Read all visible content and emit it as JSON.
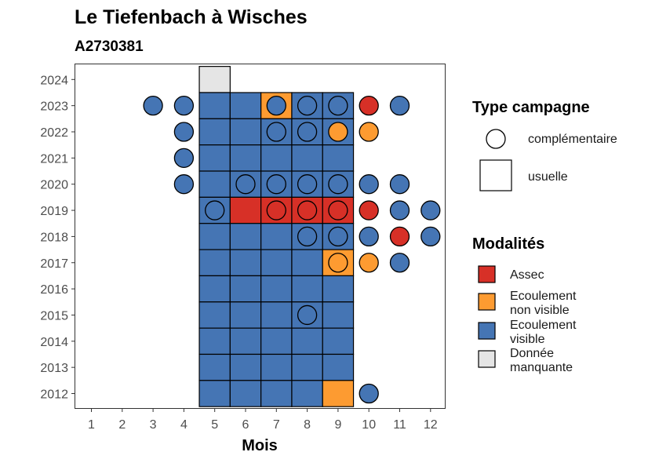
{
  "chart_data": {
    "type": "heatmap",
    "title": "Le Tiefenbach à Wisches",
    "subtitle": "A2730381",
    "xlabel": "Mois",
    "ylabel": "",
    "x_ticks": [
      1,
      2,
      3,
      4,
      5,
      6,
      7,
      8,
      9,
      10,
      11,
      12
    ],
    "y_ticks": [
      2012,
      2013,
      2014,
      2015,
      2016,
      2017,
      2018,
      2019,
      2020,
      2021,
      2022,
      2023,
      2024
    ],
    "xlim": [
      1,
      12
    ],
    "ylim": [
      2012,
      2024
    ],
    "grid": false,
    "legend_position": "right",
    "colors": {
      "Assec": "#d73027",
      "Ecoulement non visible": "#fd9b31",
      "Ecoulement visible": "#4575b4",
      "Donnée manquante": "#e5e5e5"
    },
    "legend": {
      "type_title": "Type campagne",
      "type_entries": [
        {
          "key": "complementaire",
          "label": "complémentaire",
          "shape": "circle"
        },
        {
          "key": "usuelle",
          "label": "usuelle",
          "shape": "square"
        }
      ],
      "modalite_title": "Modalités",
      "modalite_entries": [
        {
          "key": "Assec",
          "lines": [
            "Assec"
          ]
        },
        {
          "key": "Ecoulement non visible",
          "lines": [
            "Ecoulement",
            "non visible"
          ]
        },
        {
          "key": "Ecoulement visible",
          "lines": [
            "Ecoulement",
            "visible"
          ]
        },
        {
          "key": "Donnée manquante",
          "lines": [
            "Donnée",
            "manquante"
          ]
        }
      ]
    },
    "usuelle": [
      {
        "year": 2024,
        "month": 5,
        "modalite": "Donnée manquante"
      },
      {
        "year": 2023,
        "month": 5,
        "modalite": "Ecoulement visible"
      },
      {
        "year": 2023,
        "month": 6,
        "modalite": "Ecoulement visible"
      },
      {
        "year": 2023,
        "month": 7,
        "modalite": "Ecoulement non visible"
      },
      {
        "year": 2023,
        "month": 8,
        "modalite": "Ecoulement visible"
      },
      {
        "year": 2023,
        "month": 9,
        "modalite": "Ecoulement visible"
      },
      {
        "year": 2022,
        "month": 5,
        "modalite": "Ecoulement visible"
      },
      {
        "year": 2022,
        "month": 6,
        "modalite": "Ecoulement visible"
      },
      {
        "year": 2022,
        "month": 7,
        "modalite": "Ecoulement visible"
      },
      {
        "year": 2022,
        "month": 8,
        "modalite": "Ecoulement visible"
      },
      {
        "year": 2022,
        "month": 9,
        "modalite": "Ecoulement visible"
      },
      {
        "year": 2021,
        "month": 5,
        "modalite": "Ecoulement visible"
      },
      {
        "year": 2021,
        "month": 6,
        "modalite": "Ecoulement visible"
      },
      {
        "year": 2021,
        "month": 7,
        "modalite": "Ecoulement visible"
      },
      {
        "year": 2021,
        "month": 8,
        "modalite": "Ecoulement visible"
      },
      {
        "year": 2021,
        "month": 9,
        "modalite": "Ecoulement visible"
      },
      {
        "year": 2020,
        "month": 5,
        "modalite": "Ecoulement visible"
      },
      {
        "year": 2020,
        "month": 6,
        "modalite": "Ecoulement visible"
      },
      {
        "year": 2020,
        "month": 7,
        "modalite": "Ecoulement visible"
      },
      {
        "year": 2020,
        "month": 8,
        "modalite": "Ecoulement visible"
      },
      {
        "year": 2020,
        "month": 9,
        "modalite": "Ecoulement visible"
      },
      {
        "year": 2019,
        "month": 5,
        "modalite": "Ecoulement visible"
      },
      {
        "year": 2019,
        "month": 6,
        "modalite": "Assec"
      },
      {
        "year": 2019,
        "month": 7,
        "modalite": "Assec"
      },
      {
        "year": 2019,
        "month": 8,
        "modalite": "Assec"
      },
      {
        "year": 2019,
        "month": 9,
        "modalite": "Assec"
      },
      {
        "year": 2018,
        "month": 5,
        "modalite": "Ecoulement visible"
      },
      {
        "year": 2018,
        "month": 6,
        "modalite": "Ecoulement visible"
      },
      {
        "year": 2018,
        "month": 7,
        "modalite": "Ecoulement visible"
      },
      {
        "year": 2018,
        "month": 8,
        "modalite": "Ecoulement visible"
      },
      {
        "year": 2018,
        "month": 9,
        "modalite": "Ecoulement visible"
      },
      {
        "year": 2017,
        "month": 5,
        "modalite": "Ecoulement visible"
      },
      {
        "year": 2017,
        "month": 6,
        "modalite": "Ecoulement visible"
      },
      {
        "year": 2017,
        "month": 7,
        "modalite": "Ecoulement visible"
      },
      {
        "year": 2017,
        "month": 8,
        "modalite": "Ecoulement visible"
      },
      {
        "year": 2017,
        "month": 9,
        "modalite": "Ecoulement non visible"
      },
      {
        "year": 2016,
        "month": 5,
        "modalite": "Ecoulement visible"
      },
      {
        "year": 2016,
        "month": 6,
        "modalite": "Ecoulement visible"
      },
      {
        "year": 2016,
        "month": 7,
        "modalite": "Ecoulement visible"
      },
      {
        "year": 2016,
        "month": 8,
        "modalite": "Ecoulement visible"
      },
      {
        "year": 2016,
        "month": 9,
        "modalite": "Ecoulement visible"
      },
      {
        "year": 2015,
        "month": 5,
        "modalite": "Ecoulement visible"
      },
      {
        "year": 2015,
        "month": 6,
        "modalite": "Ecoulement visible"
      },
      {
        "year": 2015,
        "month": 7,
        "modalite": "Ecoulement visible"
      },
      {
        "year": 2015,
        "month": 8,
        "modalite": "Ecoulement visible"
      },
      {
        "year": 2015,
        "month": 9,
        "modalite": "Ecoulement visible"
      },
      {
        "year": 2014,
        "month": 5,
        "modalite": "Ecoulement visible"
      },
      {
        "year": 2014,
        "month": 6,
        "modalite": "Ecoulement visible"
      },
      {
        "year": 2014,
        "month": 7,
        "modalite": "Ecoulement visible"
      },
      {
        "year": 2014,
        "month": 8,
        "modalite": "Ecoulement visible"
      },
      {
        "year": 2014,
        "month": 9,
        "modalite": "Ecoulement visible"
      },
      {
        "year": 2013,
        "month": 5,
        "modalite": "Ecoulement visible"
      },
      {
        "year": 2013,
        "month": 6,
        "modalite": "Ecoulement visible"
      },
      {
        "year": 2013,
        "month": 7,
        "modalite": "Ecoulement visible"
      },
      {
        "year": 2013,
        "month": 8,
        "modalite": "Ecoulement visible"
      },
      {
        "year": 2013,
        "month": 9,
        "modalite": "Ecoulement visible"
      },
      {
        "year": 2012,
        "month": 5,
        "modalite": "Ecoulement visible"
      },
      {
        "year": 2012,
        "month": 6,
        "modalite": "Ecoulement visible"
      },
      {
        "year": 2012,
        "month": 7,
        "modalite": "Ecoulement visible"
      },
      {
        "year": 2012,
        "month": 8,
        "modalite": "Ecoulement visible"
      },
      {
        "year": 2012,
        "month": 9,
        "modalite": "Ecoulement non visible"
      }
    ],
    "complementaire": [
      {
        "year": 2023,
        "month": 3,
        "modalite": "Ecoulement visible"
      },
      {
        "year": 2023,
        "month": 4,
        "modalite": "Ecoulement visible"
      },
      {
        "year": 2023,
        "month": 7,
        "modalite": "Ecoulement visible"
      },
      {
        "year": 2023,
        "month": 8,
        "modalite": "Ecoulement visible"
      },
      {
        "year": 2023,
        "month": 9,
        "modalite": "Ecoulement visible"
      },
      {
        "year": 2023,
        "month": 10,
        "modalite": "Assec"
      },
      {
        "year": 2023,
        "month": 11,
        "modalite": "Ecoulement visible"
      },
      {
        "year": 2022,
        "month": 4,
        "modalite": "Ecoulement visible"
      },
      {
        "year": 2022,
        "month": 7,
        "modalite": "Ecoulement visible"
      },
      {
        "year": 2022,
        "month": 8,
        "modalite": "Ecoulement visible"
      },
      {
        "year": 2022,
        "month": 9,
        "modalite": "Ecoulement non visible"
      },
      {
        "year": 2022,
        "month": 10,
        "modalite": "Ecoulement non visible"
      },
      {
        "year": 2021,
        "month": 4,
        "modalite": "Ecoulement visible"
      },
      {
        "year": 2020,
        "month": 4,
        "modalite": "Ecoulement visible"
      },
      {
        "year": 2020,
        "month": 6,
        "modalite": "Ecoulement visible"
      },
      {
        "year": 2020,
        "month": 7,
        "modalite": "Ecoulement visible"
      },
      {
        "year": 2020,
        "month": 8,
        "modalite": "Ecoulement visible"
      },
      {
        "year": 2020,
        "month": 9,
        "modalite": "Ecoulement visible"
      },
      {
        "year": 2020,
        "month": 10,
        "modalite": "Ecoulement visible"
      },
      {
        "year": 2020,
        "month": 11,
        "modalite": "Ecoulement visible"
      },
      {
        "year": 2019,
        "month": 5,
        "modalite": "Ecoulement visible"
      },
      {
        "year": 2019,
        "month": 7,
        "modalite": "Assec"
      },
      {
        "year": 2019,
        "month": 8,
        "modalite": "Assec"
      },
      {
        "year": 2019,
        "month": 9,
        "modalite": "Assec"
      },
      {
        "year": 2019,
        "month": 10,
        "modalite": "Assec"
      },
      {
        "year": 2019,
        "month": 11,
        "modalite": "Ecoulement visible"
      },
      {
        "year": 2019,
        "month": 12,
        "modalite": "Ecoulement visible"
      },
      {
        "year": 2018,
        "month": 8,
        "modalite": "Ecoulement visible"
      },
      {
        "year": 2018,
        "month": 9,
        "modalite": "Ecoulement visible"
      },
      {
        "year": 2018,
        "month": 10,
        "modalite": "Ecoulement visible"
      },
      {
        "year": 2018,
        "month": 11,
        "modalite": "Assec"
      },
      {
        "year": 2018,
        "month": 12,
        "modalite": "Ecoulement visible"
      },
      {
        "year": 2017,
        "month": 9,
        "modalite": "Ecoulement non visible"
      },
      {
        "year": 2017,
        "month": 10,
        "modalite": "Ecoulement non visible"
      },
      {
        "year": 2017,
        "month": 11,
        "modalite": "Ecoulement visible"
      },
      {
        "year": 2015,
        "month": 8,
        "modalite": "Ecoulement visible"
      },
      {
        "year": 2012,
        "month": 10,
        "modalite": "Ecoulement visible"
      }
    ]
  }
}
